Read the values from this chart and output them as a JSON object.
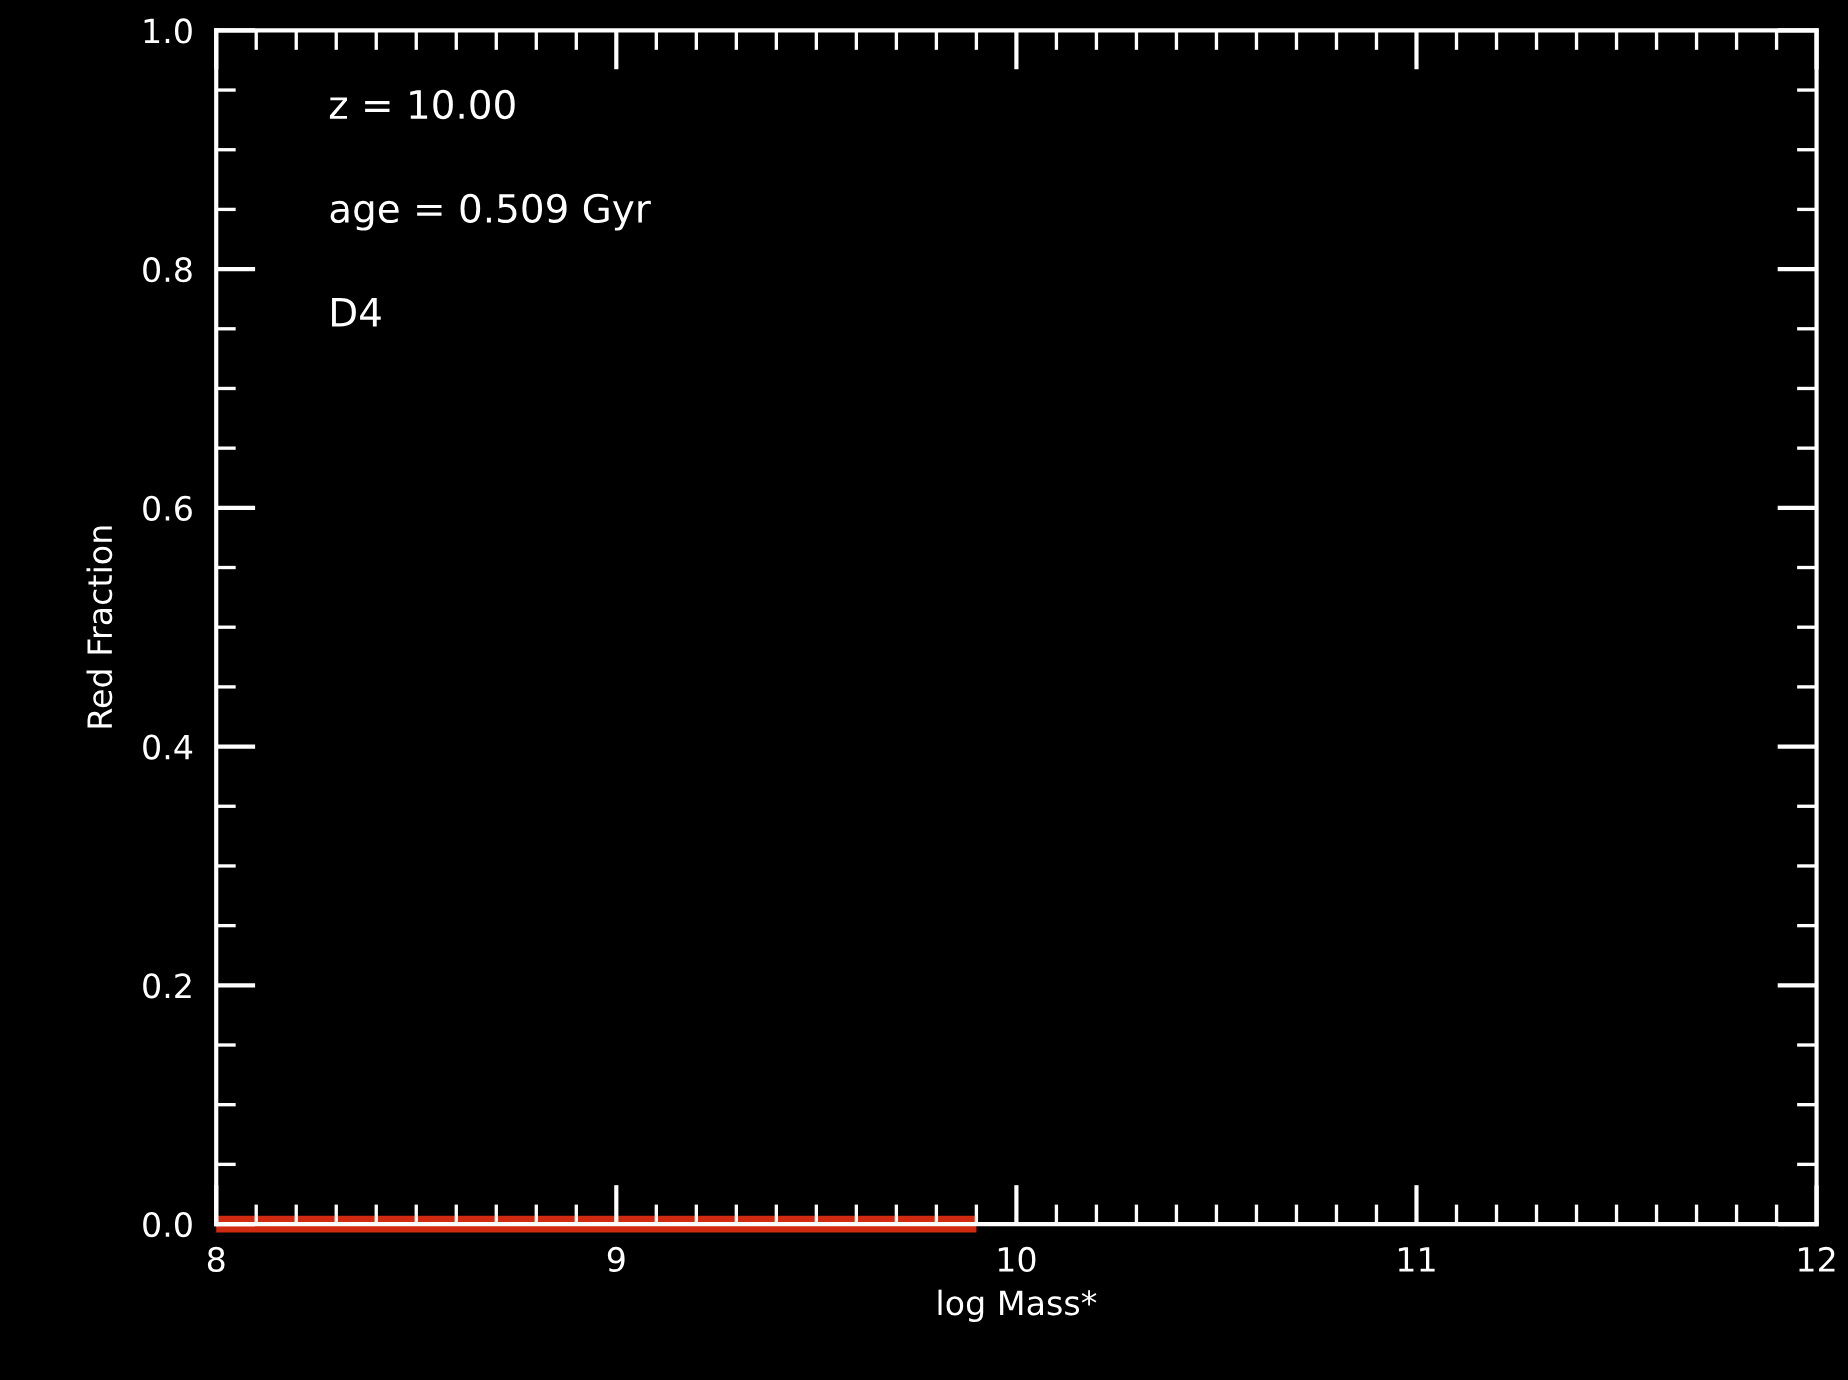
{
  "chart_data": {
    "type": "line",
    "xlabel": "log Mass*",
    "ylabel": "Red Fraction",
    "annotations": [
      "z = 10.00",
      "age = 0.509 Gyr",
      "D4"
    ],
    "x": [
      8.0,
      9.9
    ],
    "series": [
      {
        "color": "#d02a10",
        "values": [
          0,
          0
        ]
      }
    ],
    "xlim": [
      8,
      12
    ],
    "xticks": [
      8,
      9,
      10,
      11,
      12
    ],
    "ylim": [
      0,
      1
    ],
    "yticks": [
      {
        "value": 0,
        "label": "0.0"
      },
      {
        "value": 0.2,
        "label": "0.2"
      },
      {
        "value": 0.4,
        "label": "0.4"
      },
      {
        "value": 0.6,
        "label": "0.6"
      },
      {
        "value": 0.8,
        "label": "0.8"
      },
      {
        "value": 1,
        "label": "1.0"
      }
    ],
    "grid": false,
    "line_style": "solid"
  }
}
